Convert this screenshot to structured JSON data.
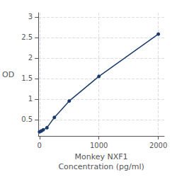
{
  "chart_data": {
    "type": "line",
    "x": [
      0,
      31.25,
      62.5,
      125,
      250,
      500,
      1000,
      2000
    ],
    "values": [
      0.2,
      0.22,
      0.25,
      0.3,
      0.55,
      0.95,
      1.55,
      2.58
    ],
    "color": "#1a3a6b",
    "marker": "circle",
    "xlabel": "Monkey NXF1\nConcentration (pg/ml)",
    "ylabel": "OD",
    "xlim": [
      -20,
      2100
    ],
    "xticks": [
      0,
      1000,
      2000
    ],
    "ylim": [
      0.1,
      3.1
    ],
    "yticks": [
      0.5,
      1,
      1.5,
      2,
      2.5,
      3
    ],
    "grid": true
  }
}
